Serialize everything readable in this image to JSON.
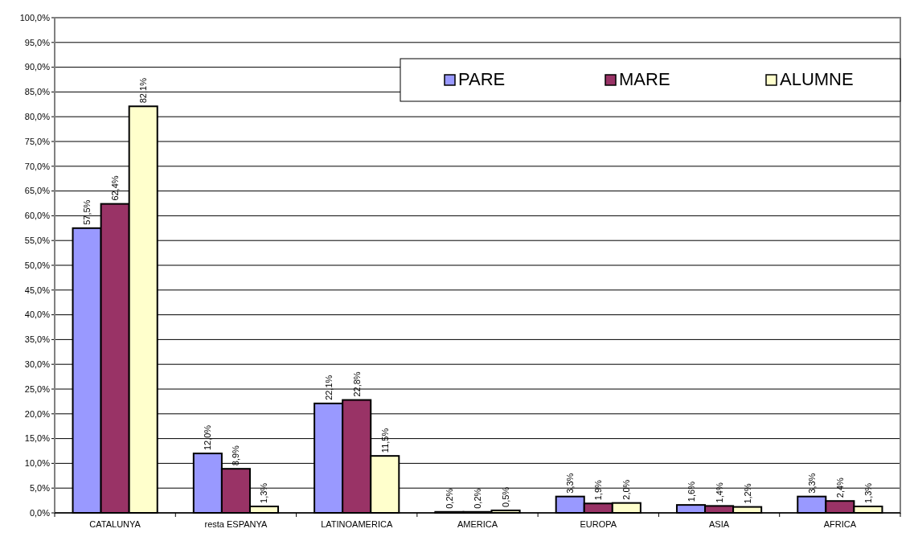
{
  "chart_data": {
    "type": "bar",
    "categories": [
      "CATALUNYA",
      "resta ESPANYA",
      "LATINOAMERICA",
      "AMERICA",
      "EUROPA",
      "ASIA",
      "AFRICA"
    ],
    "series": [
      {
        "name": "PARE",
        "color": "#9999ff",
        "values": [
          57.5,
          12.0,
          22.1,
          0.2,
          3.3,
          1.6,
          3.3
        ],
        "value_labels": [
          "57,5%",
          "12,0%",
          "22,1%",
          "0,2%",
          "3,3%",
          "1,6%",
          "3,3%"
        ]
      },
      {
        "name": "MARE",
        "color": "#993366",
        "values": [
          62.4,
          8.9,
          22.8,
          0.2,
          1.9,
          1.4,
          2.4
        ],
        "value_labels": [
          "62,4%",
          "8,9%",
          "22,8%",
          "0,2%",
          "1,9%",
          "1,4%",
          "2,4%"
        ]
      },
      {
        "name": "ALUMNE",
        "color": "#ffffcc",
        "values": [
          82.1,
          1.3,
          11.5,
          0.5,
          2.0,
          1.2,
          1.3
        ],
        "value_labels": [
          "82,1%",
          "1,3%",
          "11,5%",
          "0,5%",
          "2,0%",
          "1,2%",
          "1,3%"
        ]
      }
    ],
    "ylim": [
      0,
      100
    ],
    "yticks": [
      {
        "value": 0,
        "label": "0,0%"
      },
      {
        "value": 5,
        "label": "5,0%"
      },
      {
        "value": 10,
        "label": "10,0%"
      },
      {
        "value": 15,
        "label": "15,0%"
      },
      {
        "value": 20,
        "label": "20,0%"
      },
      {
        "value": 25,
        "label": "25,0%"
      },
      {
        "value": 30,
        "label": "30,0%"
      },
      {
        "value": 35,
        "label": "35,0%"
      },
      {
        "value": 40,
        "label": "40,0%"
      },
      {
        "value": 45,
        "label": "45,0%"
      },
      {
        "value": 50,
        "label": "50,0%"
      },
      {
        "value": 55,
        "label": "55,0%"
      },
      {
        "value": 60,
        "label": "60,0%"
      },
      {
        "value": 65,
        "label": "65,0%"
      },
      {
        "value": 70,
        "label": "70,0%"
      },
      {
        "value": 75,
        "label": "75,0%"
      },
      {
        "value": 80,
        "label": "80,0%"
      },
      {
        "value": 85,
        "label": "85,0%"
      },
      {
        "value": 90,
        "label": "90,0%"
      },
      {
        "value": 95,
        "label": "95,0%"
      },
      {
        "value": 100,
        "label": "100,0%"
      }
    ],
    "grid": "y",
    "legend": "top right"
  }
}
